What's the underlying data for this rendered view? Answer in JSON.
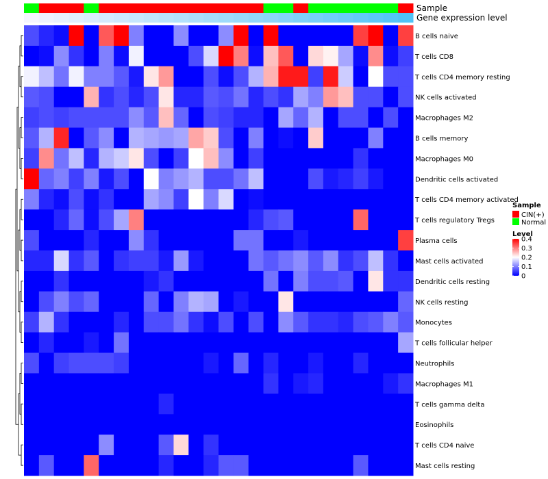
{
  "chart_data": {
    "type": "heatmap",
    "title": "",
    "annotations": [
      {
        "name": "Sample",
        "type": "categorical"
      },
      {
        "name": "Gene expression level",
        "type": "continuous"
      }
    ],
    "columns": [
      {
        "sample": "Normal"
      },
      {
        "sample": "CIN(+)"
      },
      {
        "sample": "CIN(+)"
      },
      {
        "sample": "CIN(+)"
      },
      {
        "sample": "Normal"
      },
      {
        "sample": "CIN(+)"
      },
      {
        "sample": "CIN(+)"
      },
      {
        "sample": "CIN(+)"
      },
      {
        "sample": "CIN(+)"
      },
      {
        "sample": "CIN(+)"
      },
      {
        "sample": "CIN(+)"
      },
      {
        "sample": "CIN(+)"
      },
      {
        "sample": "CIN(+)"
      },
      {
        "sample": "CIN(+)"
      },
      {
        "sample": "CIN(+)"
      },
      {
        "sample": "CIN(+)"
      },
      {
        "sample": "Normal"
      },
      {
        "sample": "Normal"
      },
      {
        "sample": "CIN(+)"
      },
      {
        "sample": "Normal"
      },
      {
        "sample": "Normal"
      },
      {
        "sample": "Normal"
      },
      {
        "sample": "Normal"
      },
      {
        "sample": "Normal"
      },
      {
        "sample": "Normal"
      },
      {
        "sample": "CIN(+)"
      }
    ],
    "gene_expression_level": [
      0.0,
      0.04,
      0.08,
      0.12,
      0.16,
      0.2,
      0.24,
      0.28,
      0.32,
      0.36,
      0.4,
      0.44,
      0.48,
      0.52,
      0.56,
      0.6,
      0.64,
      0.68,
      0.72,
      0.76,
      0.8,
      0.84,
      0.88,
      0.92,
      0.96,
      1.0
    ],
    "rows": [
      "B cells naive",
      "T cells CD8",
      "T cells CD4 memory resting",
      "NK cells activated",
      "Macrophages M2",
      "B cells memory",
      "Macrophages M0",
      "Dendritic cells activated",
      "T cells CD4 memory activated",
      "T cells regulatory  Tregs",
      "Plasma cells",
      "Mast cells activated",
      "Dendritic cells resting",
      "NK cells resting",
      "Monocytes",
      "T cells follicular helper",
      "Neutrophils",
      "Macrophages M1",
      "T cells gamma delta",
      "Eosinophils",
      "T cells CD4 naive",
      "Mast cells resting"
    ],
    "values": [
      [
        0.06,
        0.03,
        0.01,
        0.4,
        0.0,
        0.33,
        0.4,
        0.1,
        0.0,
        0.0,
        0.11,
        0.0,
        0.0,
        0.11,
        0.4,
        0.0,
        0.4,
        0.0,
        0.0,
        0.0,
        0.0,
        0.0,
        0.35,
        0.4,
        0.0,
        0.35
      ],
      [
        0.0,
        0.01,
        0.11,
        0.04,
        0.0,
        0.1,
        0.01,
        0.19,
        0.0,
        0.0,
        0.0,
        0.06,
        0.17,
        0.4,
        0.3,
        0.01,
        0.25,
        0.33,
        0.0,
        0.23,
        0.21,
        0.13,
        0.01,
        0.29,
        0.01,
        0.05
      ],
      [
        0.19,
        0.15,
        0.09,
        0.19,
        0.1,
        0.1,
        0.07,
        0.02,
        0.22,
        0.28,
        0.0,
        0.0,
        0.06,
        0.01,
        0.06,
        0.14,
        0.26,
        0.38,
        0.38,
        0.05,
        0.38,
        0.16,
        0.0,
        0.2,
        0.06,
        0.06
      ],
      [
        0.07,
        0.06,
        0.0,
        0.0,
        0.26,
        0.04,
        0.06,
        0.03,
        0.06,
        0.22,
        0.03,
        0.03,
        0.07,
        0.06,
        0.09,
        0.03,
        0.06,
        0.04,
        0.13,
        0.1,
        0.28,
        0.25,
        0.06,
        0.06,
        0.0,
        0.06
      ],
      [
        0.05,
        0.06,
        0.05,
        0.06,
        0.06,
        0.06,
        0.06,
        0.11,
        0.07,
        0.25,
        0.08,
        0.0,
        0.06,
        0.05,
        0.03,
        0.03,
        0.0,
        0.13,
        0.08,
        0.14,
        0.0,
        0.06,
        0.06,
        0.0,
        0.06,
        0.0
      ],
      [
        0.07,
        0.14,
        0.37,
        0.0,
        0.07,
        0.11,
        0.0,
        0.14,
        0.13,
        0.12,
        0.13,
        0.27,
        0.24,
        0.06,
        0.0,
        0.1,
        0.0,
        0.01,
        0.0,
        0.24,
        0.0,
        0.0,
        0.0,
        0.1,
        0.0,
        0.0
      ],
      [
        0.05,
        0.29,
        0.09,
        0.15,
        0.03,
        0.14,
        0.16,
        0.22,
        0.06,
        0.0,
        0.05,
        0.2,
        0.25,
        0.11,
        0.0,
        0.05,
        0.0,
        0.0,
        0.0,
        0.0,
        0.0,
        0.0,
        0.04,
        0.0,
        0.0,
        0.0
      ],
      [
        0.4,
        0.08,
        0.1,
        0.05,
        0.1,
        0.02,
        0.06,
        0.0,
        0.2,
        0.1,
        0.12,
        0.14,
        0.06,
        0.06,
        0.09,
        0.15,
        0.0,
        0.0,
        0.0,
        0.06,
        0.02,
        0.03,
        0.05,
        0.02,
        0.0,
        0.0
      ],
      [
        0.1,
        0.03,
        0.01,
        0.06,
        0.01,
        0.04,
        0.0,
        0.0,
        0.13,
        0.11,
        0.05,
        0.2,
        0.1,
        0.17,
        0.0,
        0.01,
        0.0,
        0.0,
        0.0,
        0.0,
        0.0,
        0.0,
        0.0,
        0.0,
        0.0,
        0.0
      ],
      [
        0.0,
        0.0,
        0.03,
        0.08,
        0.01,
        0.06,
        0.13,
        0.3,
        0.0,
        0.0,
        0.0,
        0.0,
        0.0,
        0.0,
        0.0,
        0.03,
        0.06,
        0.07,
        0.0,
        0.0,
        0.0,
        0.0,
        0.32,
        0.0,
        0.0,
        0.0
      ],
      [
        0.06,
        0.0,
        0.0,
        0.0,
        0.03,
        0.0,
        0.0,
        0.11,
        0.04,
        0.0,
        0.0,
        0.0,
        0.0,
        0.0,
        0.09,
        0.09,
        0.0,
        0.0,
        0.02,
        0.0,
        0.0,
        0.0,
        0.0,
        0.0,
        0.0,
        0.35
      ],
      [
        0.03,
        0.03,
        0.17,
        0.04,
        0.07,
        0.0,
        0.04,
        0.05,
        0.05,
        0.02,
        0.12,
        0.02,
        0.0,
        0.0,
        0.0,
        0.09,
        0.07,
        0.09,
        0.11,
        0.07,
        0.11,
        0.04,
        0.06,
        0.15,
        0.04,
        0.0
      ],
      [
        0.0,
        0.0,
        0.04,
        0.0,
        0.0,
        0.0,
        0.0,
        0.0,
        0.02,
        0.04,
        0.0,
        0.0,
        0.0,
        0.0,
        0.0,
        0.0,
        0.09,
        0.0,
        0.1,
        0.06,
        0.06,
        0.07,
        0.0,
        0.22,
        0.04,
        0.04
      ],
      [
        0.0,
        0.06,
        0.1,
        0.06,
        0.08,
        0.0,
        0.0,
        0.0,
        0.08,
        0.0,
        0.1,
        0.14,
        0.13,
        0.0,
        0.02,
        0.0,
        0.0,
        0.22,
        0.0,
        0.0,
        0.0,
        0.0,
        0.0,
        0.0,
        0.0,
        0.08
      ],
      [
        0.05,
        0.14,
        0.04,
        0.0,
        0.0,
        0.0,
        0.03,
        0.0,
        0.06,
        0.06,
        0.09,
        0.04,
        0.01,
        0.06,
        0.0,
        0.06,
        0.0,
        0.11,
        0.07,
        0.04,
        0.04,
        0.03,
        0.06,
        0.07,
        0.1,
        0.07
      ],
      [
        0.0,
        0.03,
        0.0,
        0.0,
        0.02,
        0.0,
        0.09,
        0.0,
        0.0,
        0.0,
        0.0,
        0.0,
        0.0,
        0.0,
        0.0,
        0.0,
        0.0,
        0.0,
        0.0,
        0.0,
        0.0,
        0.0,
        0.0,
        0.0,
        0.0,
        0.13
      ],
      [
        0.06,
        0.0,
        0.05,
        0.06,
        0.06,
        0.06,
        0.05,
        0.0,
        0.0,
        0.0,
        0.0,
        0.0,
        0.02,
        0.0,
        0.08,
        0.0,
        0.03,
        0.0,
        0.0,
        0.02,
        0.0,
        0.0,
        0.03,
        0.0,
        0.0,
        0.0
      ],
      [
        0.0,
        0.0,
        0.0,
        0.0,
        0.0,
        0.0,
        0.0,
        0.0,
        0.0,
        0.0,
        0.0,
        0.0,
        0.0,
        0.0,
        0.0,
        0.0,
        0.04,
        0.0,
        0.02,
        0.03,
        0.0,
        0.0,
        0.0,
        0.0,
        0.02,
        0.04
      ],
      [
        0.0,
        0.0,
        0.0,
        0.0,
        0.0,
        0.0,
        0.0,
        0.0,
        0.0,
        0.03,
        0.0,
        0.0,
        0.0,
        0.0,
        0.0,
        0.0,
        0.0,
        0.0,
        0.0,
        0.0,
        0.0,
        0.0,
        0.0,
        0.0,
        0.0,
        0.0
      ],
      [
        0.0,
        0.0,
        0.0,
        0.0,
        0.0,
        0.0,
        0.0,
        0.0,
        0.0,
        0.0,
        0.0,
        0.0,
        0.0,
        0.0,
        0.0,
        0.0,
        0.0,
        0.0,
        0.0,
        0.0,
        0.0,
        0.0,
        0.0,
        0.0,
        0.0,
        0.0
      ],
      [
        0.0,
        0.0,
        0.0,
        0.0,
        0.0,
        0.11,
        0.0,
        0.0,
        0.0,
        0.07,
        0.23,
        0.0,
        0.04,
        0.0,
        0.0,
        0.0,
        0.0,
        0.0,
        0.0,
        0.0,
        0.0,
        0.0,
        0.0,
        0.0,
        0.0,
        0.0
      ],
      [
        0.0,
        0.07,
        0.0,
        0.0,
        0.32,
        0.0,
        0.0,
        0.0,
        0.0,
        0.03,
        0.0,
        0.0,
        0.03,
        0.07,
        0.07,
        0.0,
        0.0,
        0.0,
        0.0,
        0.0,
        0.0,
        0.0,
        0.07,
        0.0,
        0.0,
        0.0
      ]
    ],
    "legends": {
      "sample": {
        "title": "Sample",
        "entries": [
          {
            "label": "CIN(+)",
            "color": "#ff0000"
          },
          {
            "label": "Normal",
            "color": "#00ff00"
          }
        ]
      },
      "level": {
        "title": "Level",
        "min": 0,
        "max": 0.4,
        "ticks": [
          0.4,
          0.3,
          0.2,
          0.1,
          0
        ],
        "tick_labels": [
          "0.4",
          "0.3",
          "0.2",
          "0.1",
          "0"
        ]
      }
    },
    "colors": {
      "low": "#0000ff",
      "mid": "#ffffff",
      "high": "#ff0000",
      "expr_low": "#f5f5ff",
      "expr_high": "#4fc3f7",
      "dendrogram": "#000000"
    }
  }
}
